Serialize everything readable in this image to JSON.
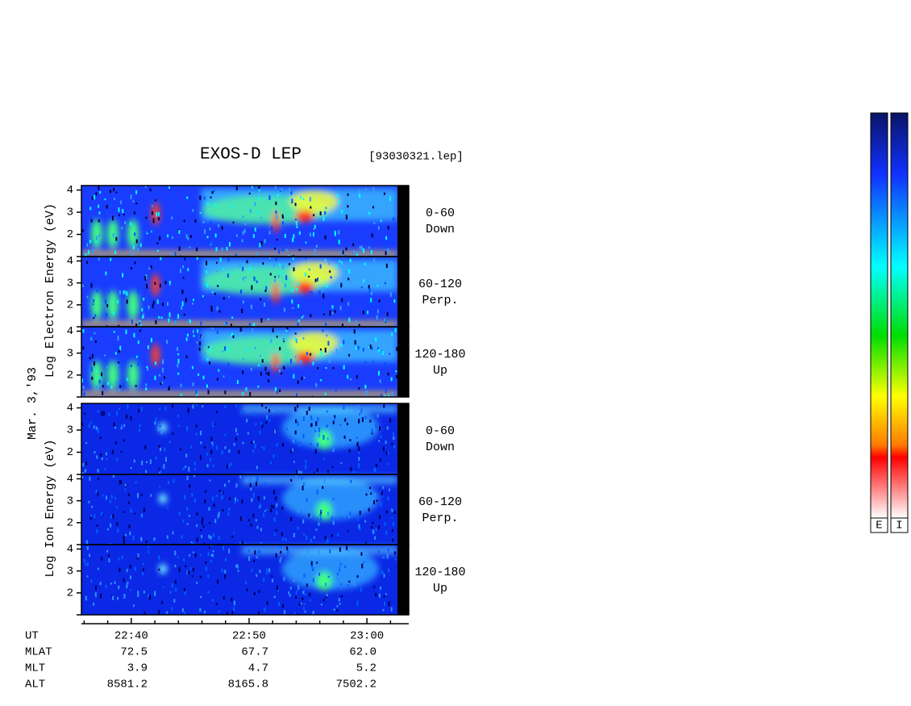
{
  "header": {
    "title": "EXOS-D LEP",
    "file": "[93030321.lep]"
  },
  "axis_labels": {
    "electron": "Log  Electron  Energy (eV)",
    "ion": "Log  Ion  Energy (eV)",
    "date": "Mar. 3,'93"
  },
  "ylim": [
    1,
    4.2
  ],
  "yticks": [
    2,
    3,
    4
  ],
  "ybottom_tick": 1,
  "xlim": [
    1355.77,
    1383.55
  ],
  "xticks": [
    {
      "value": 1360,
      "label": "22:40"
    },
    {
      "value": 1370,
      "label": "22:50"
    },
    {
      "value": 1380,
      "label": "23:00"
    }
  ],
  "minor_xticks": [
    1356,
    1358,
    1362,
    1364,
    1366,
    1368,
    1372,
    1374,
    1376,
    1378,
    1382
  ],
  "panels": [
    {
      "species": "electron",
      "angle": "0-60",
      "dir": "Down"
    },
    {
      "species": "electron",
      "angle": "60-120",
      "dir": "Perp."
    },
    {
      "species": "electron",
      "angle": "120-180",
      "dir": "Up"
    },
    {
      "species": "ion",
      "angle": "0-60",
      "dir": "Down"
    },
    {
      "species": "ion",
      "angle": "60-120",
      "dir": "Perp."
    },
    {
      "species": "ion",
      "angle": "120-180",
      "dir": "Up"
    }
  ],
  "ephemeris": [
    [
      "UT",
      "",
      "",
      ""
    ],
    [
      "MLAT",
      "72.5",
      "67.7",
      "62.0"
    ],
    [
      "MLT",
      "3.9",
      "4.7",
      "5.2"
    ],
    [
      "ALT",
      "8581.2",
      "8165.8",
      "7502.2"
    ]
  ],
  "colorbars": [
    "E",
    "I"
  ]
}
